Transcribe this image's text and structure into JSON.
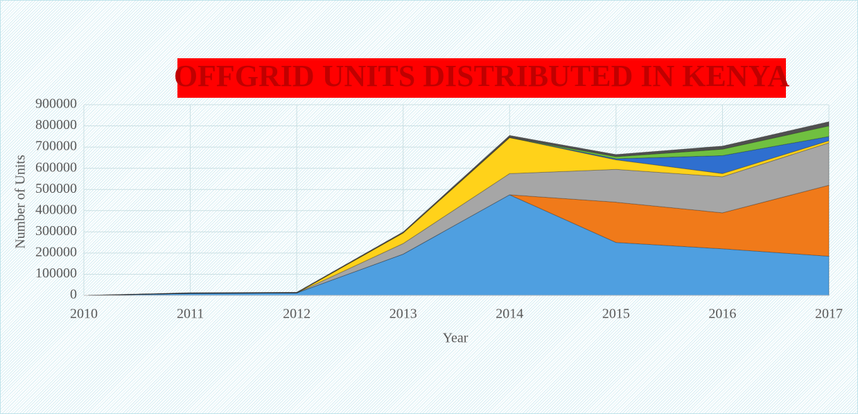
{
  "chart_data": {
    "type": "stacked_area",
    "title": "OFFGRID UNITS DISTRIBUTED IN KENYA",
    "x_label": "Year",
    "y_label": "Number of Units",
    "x": [
      2010,
      2011,
      2012,
      2013,
      2014,
      2015,
      2016,
      2017
    ],
    "series": [
      {
        "color": "#4f9fe0",
        "values": [
          0,
          10000,
          12000,
          195000,
          475000,
          250000,
          220000,
          185000
        ]
      },
      {
        "color": "#f07a1a",
        "values": [
          0,
          0,
          0,
          0,
          0,
          190000,
          170000,
          335000
        ]
      },
      {
        "color": "#a6a6a6",
        "values": [
          0,
          0,
          0,
          50000,
          100000,
          155000,
          170000,
          200000
        ]
      },
      {
        "color": "#ffd21a",
        "values": [
          0,
          0,
          0,
          50000,
          170000,
          45000,
          15000,
          10000
        ]
      },
      {
        "color": "#2f6fcf",
        "values": [
          0,
          0,
          0,
          0,
          0,
          5000,
          85000,
          20000
        ]
      },
      {
        "color": "#70c040",
        "values": [
          0,
          0,
          0,
          0,
          0,
          10000,
          30000,
          50000
        ]
      },
      {
        "color": "#505050",
        "values": [
          0,
          3000,
          3000,
          5000,
          10000,
          10000,
          15000,
          20000
        ]
      }
    ],
    "xlim": [
      2010,
      2017
    ],
    "xticks": [
      2010,
      2011,
      2012,
      2013,
      2014,
      2015,
      2016,
      2017
    ],
    "ylim": [
      0,
      900000
    ],
    "yticks": [
      0,
      100000,
      200000,
      300000,
      400000,
      500000,
      600000,
      700000,
      800000,
      900000
    ],
    "grid": true
  }
}
